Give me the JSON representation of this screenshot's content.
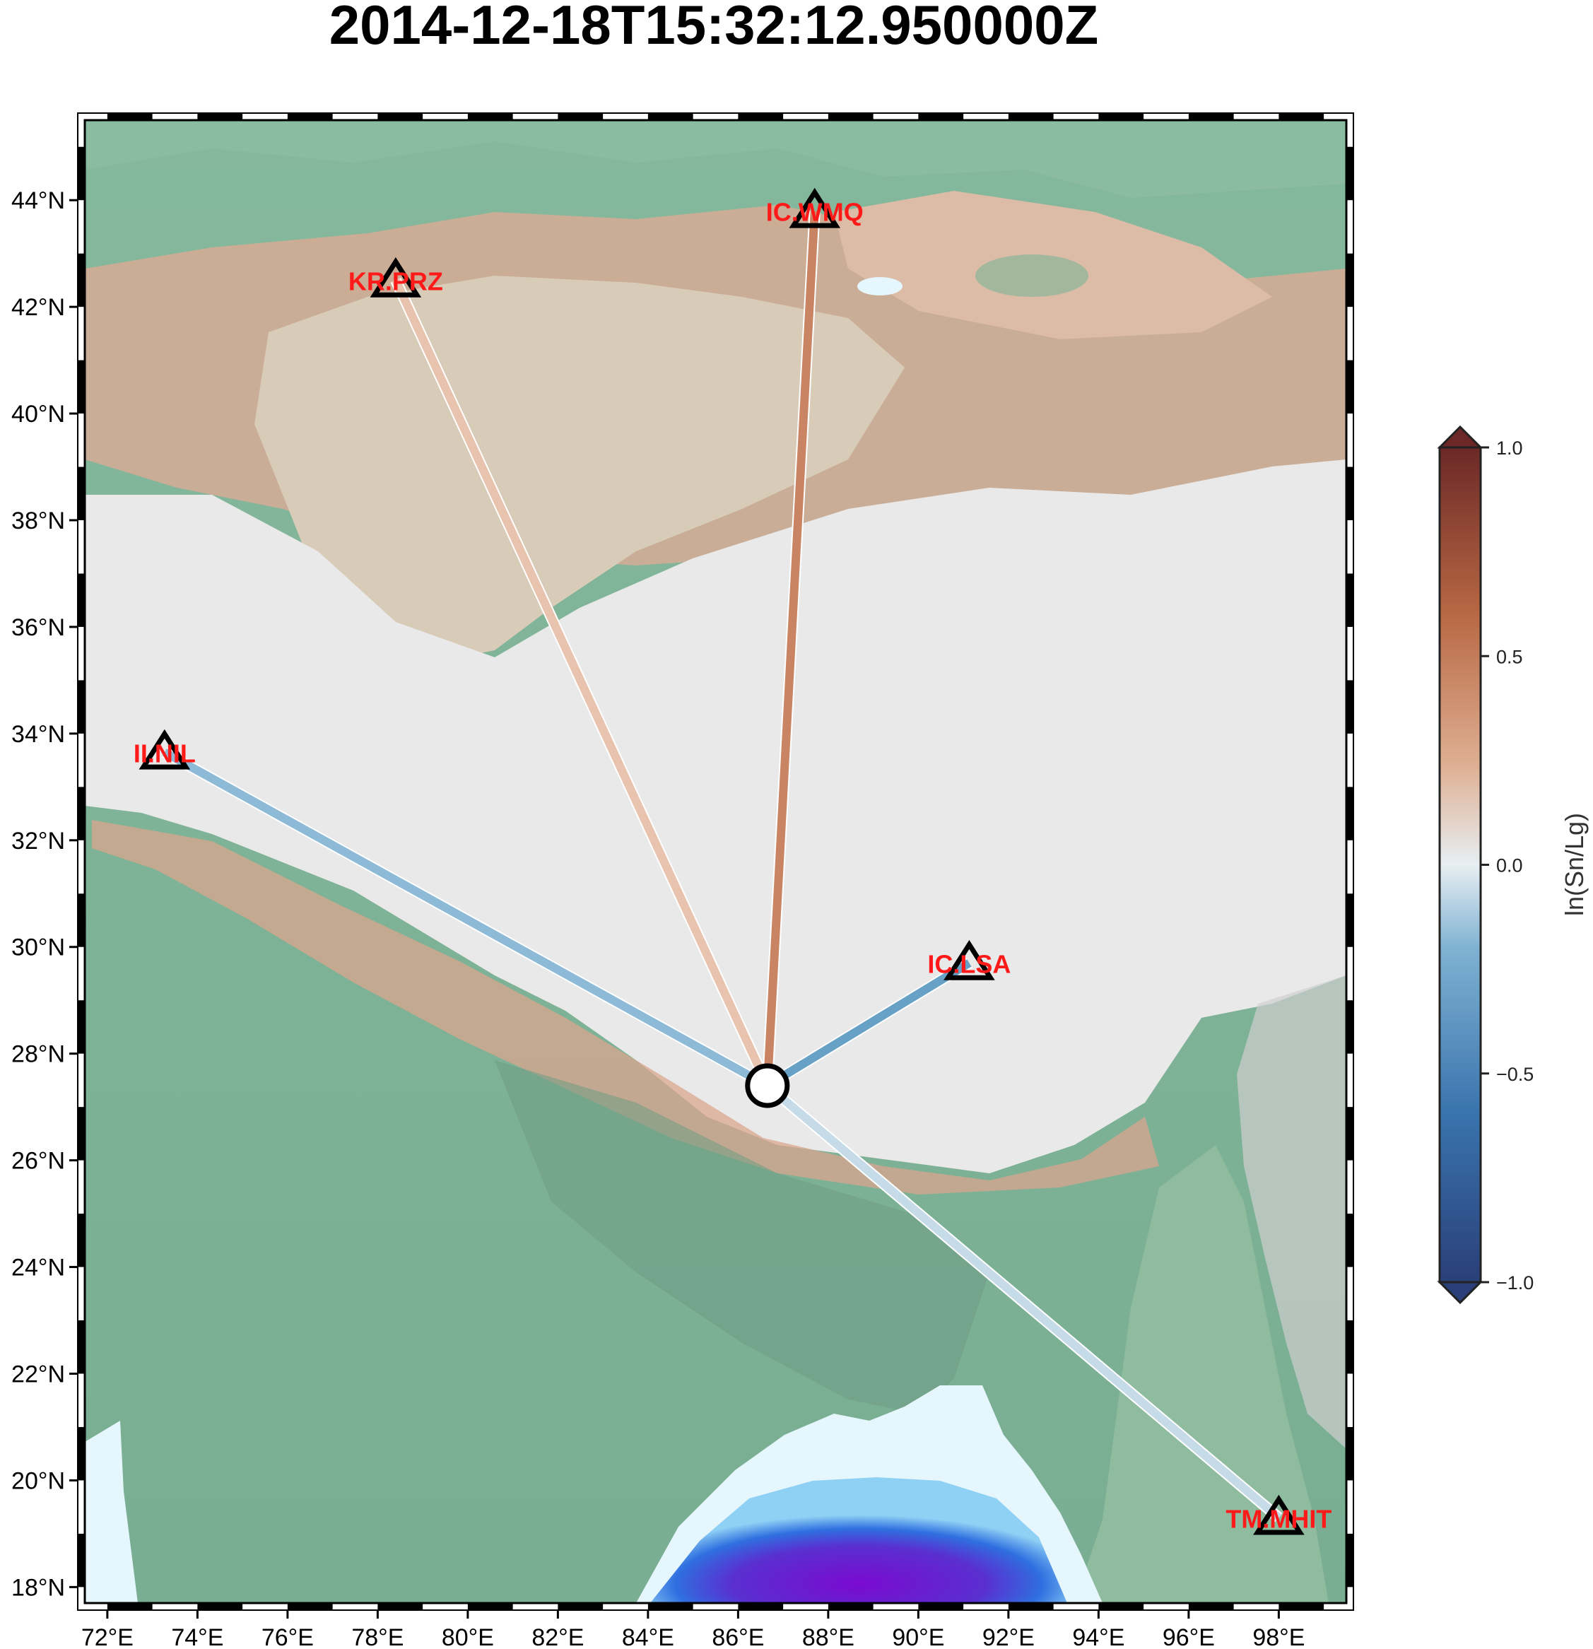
{
  "title": "2014-12-18T15:32:12.950000Z",
  "map": {
    "lon_range": [
      71.5,
      99.5
    ],
    "lat_range": [
      17.7,
      45.5
    ],
    "lon_ticks": [
      "72°E",
      "74°E",
      "76°E",
      "78°E",
      "80°E",
      "82°E",
      "84°E",
      "86°E",
      "88°E",
      "90°E",
      "92°E",
      "94°E",
      "96°E",
      "98°E"
    ],
    "lat_ticks": [
      "18°N",
      "20°N",
      "22°N",
      "24°N",
      "26°N",
      "28°N",
      "30°N",
      "32°N",
      "34°N",
      "36°N",
      "38°N",
      "40°N",
      "42°N",
      "44°N"
    ]
  },
  "event": {
    "lon": 86.65,
    "lat": 27.4
  },
  "stations": [
    {
      "code": "IC.WMQ",
      "lon": 87.7,
      "lat": 43.8,
      "value": 0.62,
      "color": "#c98563"
    },
    {
      "code": "KR.PRZ",
      "lon": 78.4,
      "lat": 42.5,
      "value": 0.17,
      "color": "#e8c3ad"
    },
    {
      "code": "II.NIL",
      "lon": 73.27,
      "lat": 33.65,
      "value": -0.3,
      "color": "#8dbad6"
    },
    {
      "code": "IC.LSA",
      "lon": 91.13,
      "lat": 29.7,
      "value": -0.45,
      "color": "#67a1c5"
    },
    {
      "code": "TM.MHIT",
      "lon": 98.0,
      "lat": 19.3,
      "value": -0.12,
      "color": "#c6dbe8"
    }
  ],
  "colorbar": {
    "label": "ln(Sn/Lg)",
    "range": [
      -1.0,
      1.0
    ],
    "ticks": [
      "1.0",
      "0.5",
      "0.0",
      "−0.5",
      "−1.0"
    ],
    "colors": [
      "#2a3f78",
      "#3973ad",
      "#7fb2d2",
      "#e8eef2",
      "#deaf92",
      "#b86844",
      "#6b2826"
    ]
  },
  "relief_colors": {
    "lowland": "#7db498",
    "plain_dark": "#6f9c85",
    "foothill": "#d9a58e",
    "basin": "#d8cbb8",
    "plateau": "#e8e8e8",
    "shelf": "#e6f6fd",
    "deep_sea": "#6a20c8"
  }
}
